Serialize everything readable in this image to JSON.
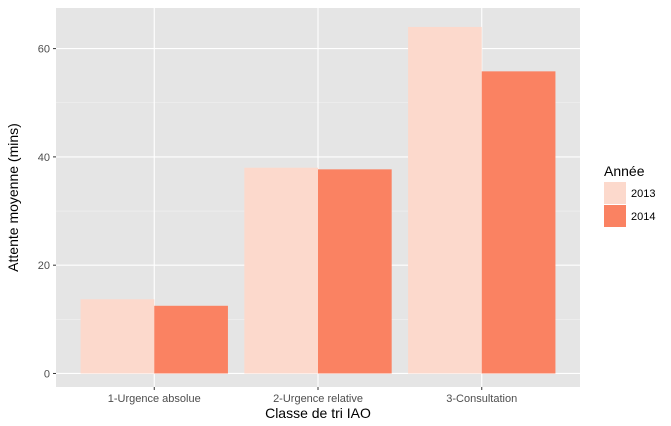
{
  "chart_data": {
    "type": "bar",
    "categories": [
      "1-Urgence absolue",
      "2-Urgence relative",
      "3-Consultation"
    ],
    "series": [
      {
        "name": "2013",
        "values": [
          13.7,
          38.0,
          64.0
        ],
        "color": "#FCD9CC"
      },
      {
        "name": "2014",
        "values": [
          12.5,
          37.7,
          55.8
        ],
        "color": "#FA8262"
      }
    ],
    "xlabel": "Classe de tri IAO",
    "ylabel": "Attente moyenne (mins)",
    "ylim": [
      -2.5,
      67.5
    ],
    "yticks": [
      0,
      20,
      40,
      60
    ],
    "grid": true,
    "panel_background": "#E5E5E5",
    "legend": {
      "title": "Année",
      "position": "right"
    }
  }
}
